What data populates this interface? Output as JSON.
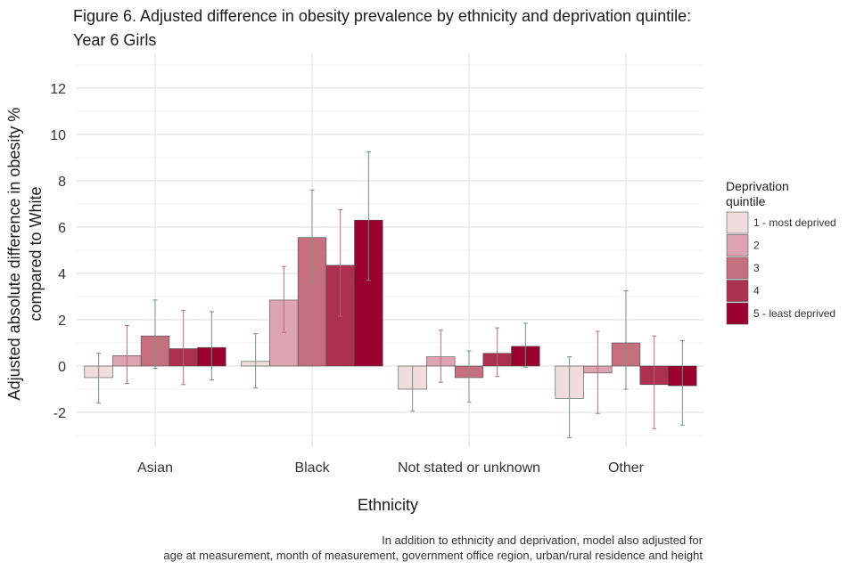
{
  "chart_data": {
    "type": "bar",
    "title": [
      "Figure 6. Adjusted difference in obesity prevalence by ethnicity and deprivation quintile:",
      "Year 6 Girls"
    ],
    "xlabel": "Ethnicity",
    "ylabel": [
      "Adjusted absolute difference in obesity %",
      "compared to White"
    ],
    "categories": [
      "Asian",
      "Black",
      "Not stated or unknown",
      "Other"
    ],
    "ylim": [
      -3.5,
      13.5
    ],
    "yticks": [
      -2,
      0,
      2,
      4,
      6,
      8,
      10,
      12
    ],
    "grid": true,
    "legend": {
      "title": [
        "Deprivation",
        "quintile"
      ],
      "position": "right"
    },
    "series": [
      {
        "name": "1 - most deprived",
        "color": "#f0dcdc",
        "values": [
          -0.5,
          0.2,
          -1.0,
          -1.4
        ],
        "err_low": [
          -1.6,
          -0.95,
          -1.95,
          -3.1
        ],
        "err_high": [
          0.55,
          1.4,
          0.0,
          0.4
        ]
      },
      {
        "name": "2",
        "color": "#dca4b0",
        "values": [
          0.45,
          2.85,
          0.4,
          -0.3
        ],
        "err_low": [
          -0.75,
          1.45,
          -0.7,
          -2.05
        ],
        "err_high": [
          1.75,
          4.3,
          1.55,
          1.5
        ]
      },
      {
        "name": "3",
        "color": "#c5707f",
        "values": [
          1.3,
          5.55,
          -0.5,
          1.0
        ],
        "err_low": [
          -0.1,
          3.6,
          -1.55,
          -1.0
        ],
        "err_high": [
          2.85,
          7.6,
          0.65,
          3.25
        ]
      },
      {
        "name": "4",
        "color": "#ac3050",
        "values": [
          0.75,
          4.35,
          0.55,
          -0.8
        ],
        "err_low": [
          -0.8,
          2.15,
          -0.45,
          -2.7
        ],
        "err_high": [
          2.4,
          6.75,
          1.65,
          1.3
        ]
      },
      {
        "name": "5 - least deprived",
        "color": "#9a0030",
        "values": [
          0.8,
          6.3,
          0.85,
          -0.85
        ],
        "err_low": [
          -0.6,
          3.7,
          -0.05,
          -2.55
        ],
        "err_high": [
          2.35,
          9.25,
          1.85,
          1.1
        ]
      }
    ],
    "caption": [
      "In addition to ethnicity and deprivation, model also adjusted for",
      "age at measurement, month of measurement, government office region, urban/rural residence and height"
    ]
  }
}
